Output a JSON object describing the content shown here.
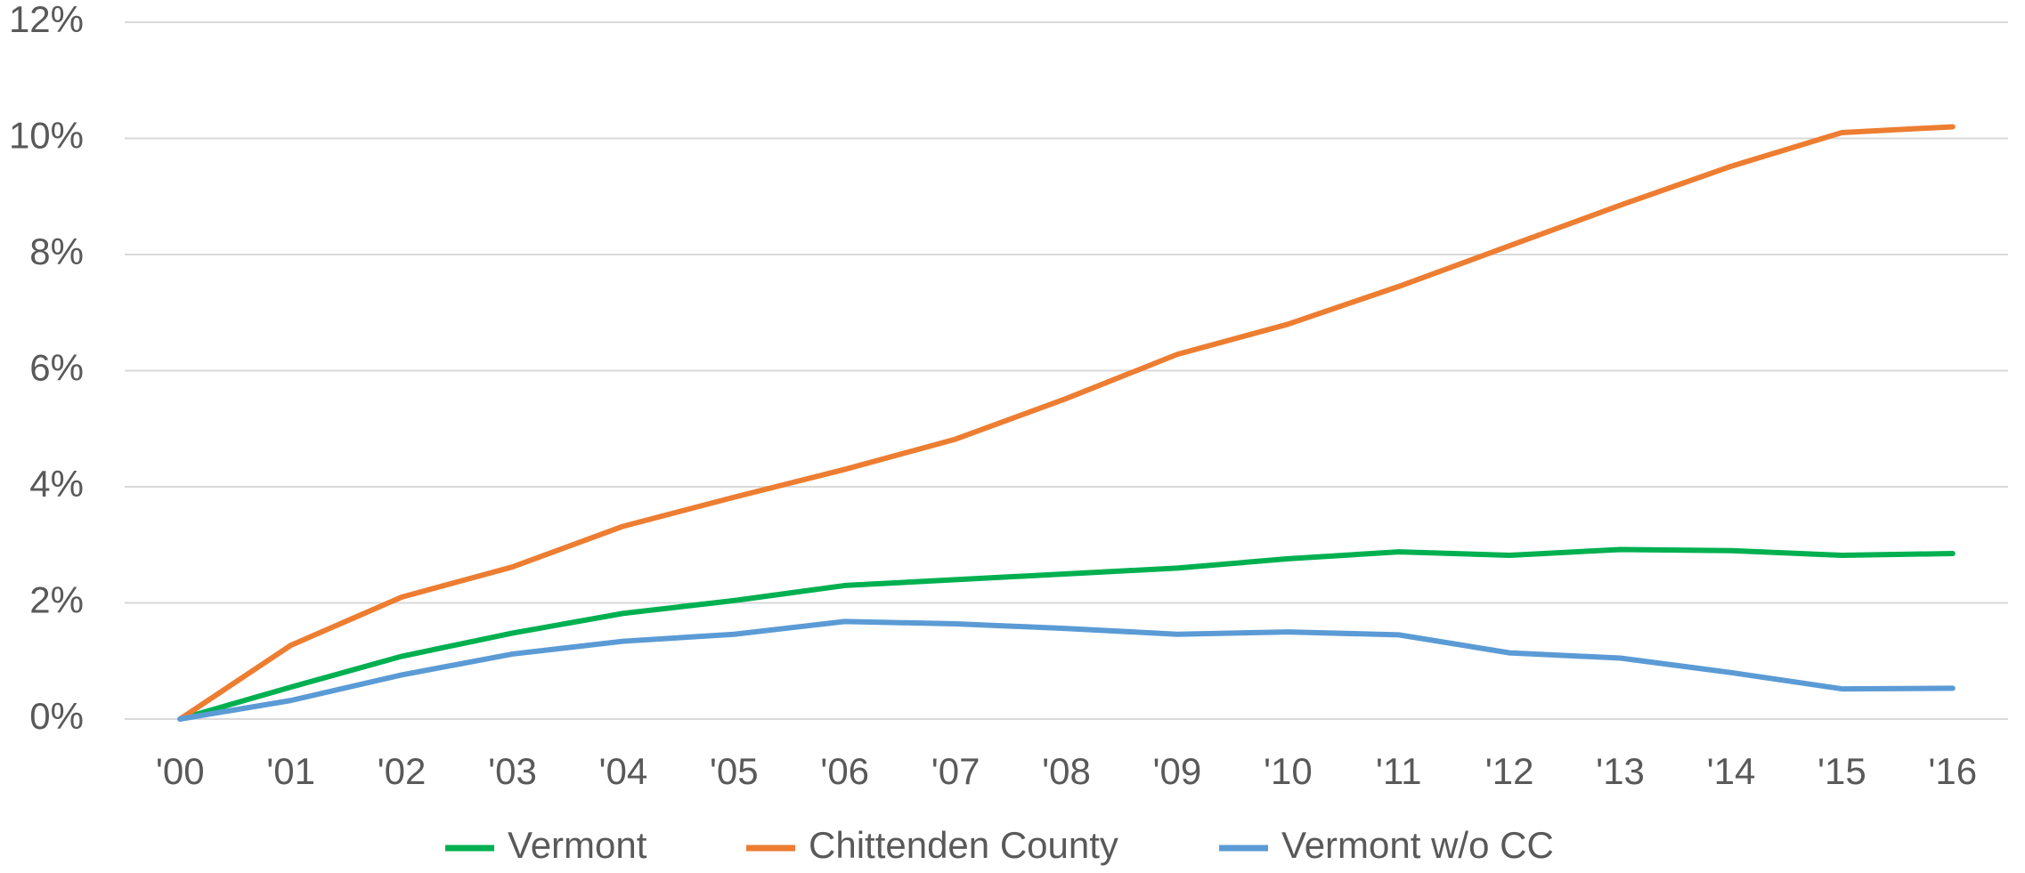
{
  "chart_data": {
    "type": "line",
    "categories": [
      "'00",
      "'01",
      "'02",
      "'03",
      "'04",
      "'05",
      "'06",
      "'07",
      "'08",
      "'09",
      "'10",
      "'11",
      "'12",
      "'13",
      "'14",
      "'15",
      "'16"
    ],
    "series": [
      {
        "name": "Vermont",
        "color": "#00b050",
        "values": [
          0,
          0.55,
          1.08,
          1.48,
          1.82,
          2.04,
          2.3,
          2.4,
          2.5,
          2.6,
          2.76,
          2.88,
          2.82,
          2.92,
          2.9,
          2.82,
          2.85
        ]
      },
      {
        "name": "Chittenden County",
        "color": "#ed7d31",
        "values": [
          0,
          1.27,
          2.1,
          2.62,
          3.32,
          3.82,
          4.3,
          4.82,
          5.52,
          6.28,
          6.8,
          7.45,
          8.15,
          8.85,
          9.52,
          10.1,
          10.2
        ]
      },
      {
        "name": "Vermont w/o CC",
        "color": "#5b9bd5",
        "values": [
          0,
          0.32,
          0.76,
          1.12,
          1.34,
          1.46,
          1.68,
          1.64,
          1.56,
          1.46,
          1.5,
          1.45,
          1.14,
          1.05,
          0.8,
          0.52,
          0.53
        ]
      }
    ],
    "ylim": [
      0,
      12
    ],
    "yticks": [
      {
        "value": 0,
        "label": "0%"
      },
      {
        "value": 2,
        "label": "2%"
      },
      {
        "value": 4,
        "label": "4%"
      },
      {
        "value": 6,
        "label": "6%"
      },
      {
        "value": 8,
        "label": "8%"
      },
      {
        "value": 10,
        "label": "10%"
      },
      {
        "value": 12,
        "label": "12%"
      }
    ],
    "grid": true,
    "legend": "bottom"
  }
}
